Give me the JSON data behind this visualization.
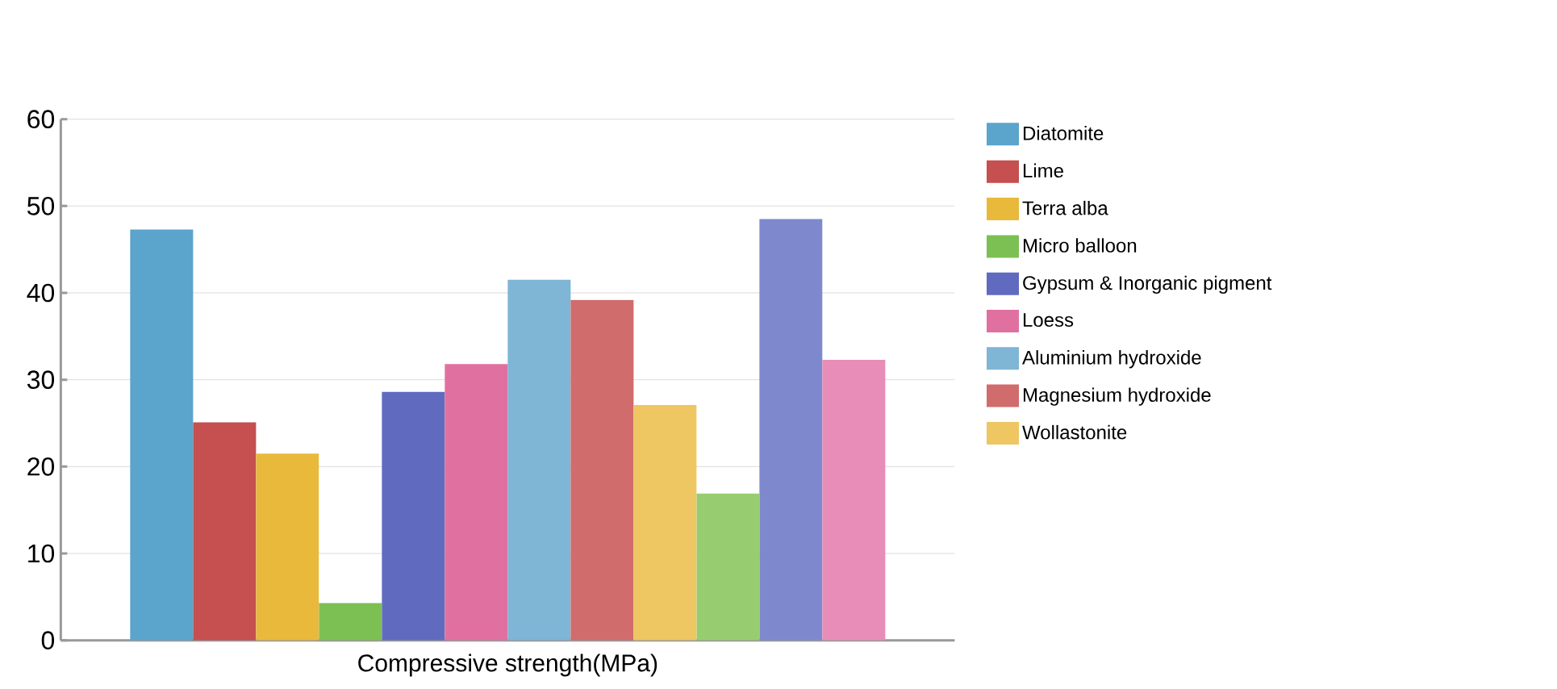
{
  "chart_data": {
    "type": "bar",
    "xlabel": "Compressive strength(MPa)",
    "categories": [
      null
    ],
    "ylim": [
      0,
      60
    ],
    "yticks": [
      0,
      10,
      20,
      30,
      40,
      50,
      60
    ],
    "grid": "y",
    "legend": "right",
    "tick_labels": "y",
    "series": [
      {
        "name": "Diatomite",
        "color": "#5ba4cb",
        "values": [
          47.3
        ]
      },
      {
        "name": "Lime",
        "color": "#c64f4f",
        "values": [
          25.1
        ]
      },
      {
        "name": "Terra alba",
        "color": "#e8b93b",
        "values": [
          21.5
        ]
      },
      {
        "name": "Micro balloon",
        "color": "#7cc054",
        "values": [
          4.3
        ]
      },
      {
        "name": "Gypsum & Inorganic pigment",
        "color": "#606bbf",
        "values": [
          28.6
        ]
      },
      {
        "name": "Loess",
        "color": "#e070a0",
        "values": [
          31.8
        ]
      },
      {
        "name": "Aluminium hydroxide",
        "color": "#7fb5d5",
        "values": [
          41.5
        ]
      },
      {
        "name": "Magnesium hydroxide",
        "color": "#d16c6c",
        "values": [
          39.2
        ]
      },
      {
        "name": "Wollastonite",
        "color": "#eec662",
        "values": [
          27.1
        ]
      },
      {
        "color": "#97cd70",
        "values": [
          16.9
        ]
      },
      {
        "color": "#7e89cd",
        "values": [
          48.5
        ]
      },
      {
        "color": "#e78db7",
        "values": [
          32.3
        ]
      }
    ]
  }
}
